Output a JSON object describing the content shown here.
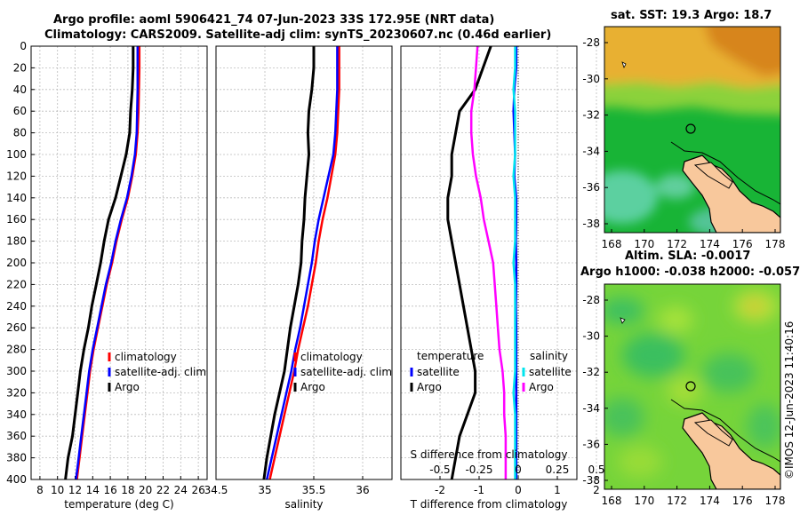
{
  "title": {
    "line1": "Argo profile: aoml 5906421_74 07-Jun-2023 33S 172.95E (NRT data)",
    "line2": "Climatology: CARS2009. Satellite-adj clim: synTS_20230607.nc (0.46d earlier)"
  },
  "sst_map": {
    "title": "sat. SST: 19.3 Argo: 18.7",
    "xticks": [
      "168",
      "170",
      "172",
      "174",
      "176",
      "178"
    ],
    "yticks": [
      "-28",
      "-30",
      "-32",
      "-34",
      "-36",
      "-38"
    ]
  },
  "sla_map": {
    "title1": "Altim. SLA: -0.0017",
    "title2": "Argo h1000: -0.038 h2000: -0.057",
    "xticks": [
      "168",
      "170",
      "172",
      "174",
      "176",
      "178"
    ],
    "yticks": [
      "-28",
      "-30",
      "-32",
      "-34",
      "-36",
      "-38"
    ]
  },
  "copyright": "©IMOS 12-Jun-2023 11:40:16",
  "colors": {
    "climatology": "#ff0000",
    "satellite": "#0000ff",
    "argo": "#000000",
    "sat_salt": "#00e5ee",
    "argo_salt": "#ff00ff"
  },
  "chart_data": [
    {
      "type": "line",
      "name": "temperature",
      "xlabel": "temperature (deg C)",
      "ylabel": "",
      "xlim": [
        7,
        27
      ],
      "ylim": [
        0,
        400
      ],
      "xticks": [
        "8",
        "10",
        "12",
        "14",
        "16",
        "18",
        "20",
        "22",
        "24",
        "26"
      ],
      "yticks": [
        "0",
        "20",
        "40",
        "60",
        "80",
        "100",
        "120",
        "140",
        "160",
        "180",
        "200",
        "220",
        "240",
        "260",
        "280",
        "300",
        "320",
        "340",
        "360",
        "380",
        "400"
      ],
      "legend": [
        "climatology",
        "satellite-adj. clim",
        "Argo"
      ],
      "series": [
        {
          "name": "climatology",
          "depth": [
            0,
            20,
            40,
            60,
            80,
            100,
            120,
            140,
            160,
            180,
            200,
            220,
            240,
            260,
            280,
            300,
            320,
            340,
            360,
            380,
            400
          ],
          "values": [
            19.3,
            19.3,
            19.25,
            19.2,
            19.1,
            18.9,
            18.5,
            18.0,
            17.3,
            16.7,
            16.2,
            15.6,
            15.1,
            14.6,
            14.1,
            13.7,
            13.4,
            13.1,
            12.8,
            12.5,
            12.2
          ]
        },
        {
          "name": "satellite-adj. clim",
          "depth": [
            0,
            20,
            40,
            60,
            80,
            100,
            120,
            140,
            160,
            180,
            200,
            220,
            240,
            260,
            280,
            300,
            320,
            340,
            360,
            380,
            400
          ],
          "values": [
            19.1,
            19.1,
            19.1,
            19.05,
            19.0,
            18.8,
            18.4,
            17.9,
            17.2,
            16.6,
            16.1,
            15.5,
            15.0,
            14.5,
            14.0,
            13.6,
            13.3,
            13.0,
            12.7,
            12.4,
            12.1
          ]
        },
        {
          "name": "Argo",
          "depth": [
            0,
            20,
            40,
            60,
            80,
            100,
            120,
            140,
            160,
            180,
            200,
            220,
            240,
            260,
            280,
            300,
            320,
            340,
            360,
            380,
            400
          ],
          "values": [
            18.6,
            18.6,
            18.5,
            18.3,
            18.2,
            17.8,
            17.2,
            16.6,
            15.8,
            15.3,
            14.9,
            14.4,
            13.9,
            13.5,
            13.0,
            12.6,
            12.3,
            12.0,
            11.7,
            11.2,
            10.9
          ]
        }
      ]
    },
    {
      "type": "line",
      "name": "salinity",
      "xlabel": "salinity",
      "ylabel": "",
      "xlim": [
        34.5,
        36.3
      ],
      "ylim": [
        0,
        400
      ],
      "xticks": [
        "34.5",
        "35",
        "35.5",
        "36"
      ],
      "legend": [
        "climatology",
        "satellite-adj. clim",
        "Argo"
      ],
      "series": [
        {
          "name": "climatology",
          "depth": [
            0,
            20,
            40,
            60,
            80,
            100,
            120,
            140,
            160,
            180,
            200,
            220,
            240,
            260,
            280,
            300,
            320,
            340,
            360,
            380,
            400
          ],
          "values": [
            35.76,
            35.76,
            35.76,
            35.75,
            35.74,
            35.72,
            35.68,
            35.64,
            35.59,
            35.55,
            35.52,
            35.48,
            35.44,
            35.39,
            35.34,
            35.3,
            35.25,
            35.2,
            35.15,
            35.1,
            35.05
          ]
        },
        {
          "name": "satellite-adj. clim",
          "depth": [
            0,
            20,
            40,
            60,
            80,
            100,
            120,
            140,
            160,
            180,
            200,
            220,
            240,
            260,
            280,
            300,
            320,
            340,
            360,
            380,
            400
          ],
          "values": [
            35.74,
            35.74,
            35.74,
            35.73,
            35.72,
            35.7,
            35.65,
            35.6,
            35.55,
            35.51,
            35.48,
            35.44,
            35.4,
            35.36,
            35.31,
            35.27,
            35.22,
            35.17,
            35.12,
            35.07,
            35.02
          ]
        },
        {
          "name": "Argo",
          "depth": [
            0,
            20,
            40,
            60,
            80,
            100,
            120,
            140,
            160,
            180,
            200,
            220,
            240,
            260,
            280,
            300,
            320,
            340,
            360,
            380,
            400
          ],
          "values": [
            35.5,
            35.5,
            35.48,
            35.45,
            35.44,
            35.45,
            35.43,
            35.41,
            35.4,
            35.38,
            35.37,
            35.34,
            35.3,
            35.26,
            35.23,
            35.2,
            35.15,
            35.1,
            35.06,
            35.02,
            34.99
          ]
        }
      ]
    },
    {
      "type": "line",
      "name": "difference",
      "xlabel": "T difference from climatology",
      "xlabel_top": "S difference from climatology",
      "xlim": [
        -3,
        1.5
      ],
      "ylim": [
        0,
        400
      ],
      "xticks": [
        "-2",
        "-1",
        "0",
        "1",
        "2"
      ],
      "xticks_s": [
        "-0.5",
        "-0.25",
        "0",
        "0.25",
        "0.5"
      ],
      "legend_temp": {
        "title": "temperature",
        "items": [
          "satellite",
          "Argo"
        ]
      },
      "legend_salt": {
        "title": "salinity",
        "items": [
          "satellite",
          "Argo"
        ]
      },
      "series": [
        {
          "name": "temperature satellite",
          "depth": [
            0,
            20,
            40,
            60,
            80,
            100,
            120,
            140,
            160,
            180,
            200,
            220,
            240,
            260,
            280,
            300,
            320,
            340,
            360,
            380,
            400
          ],
          "values": [
            -0.05,
            -0.05,
            -0.1,
            -0.12,
            -0.1,
            -0.08,
            -0.1,
            -0.05,
            -0.05,
            -0.06,
            -0.05,
            -0.05,
            -0.06,
            -0.05,
            -0.05,
            -0.05,
            -0.05,
            -0.05,
            -0.05,
            -0.05,
            -0.05
          ]
        },
        {
          "name": "temperature Argo",
          "depth": [
            0,
            20,
            40,
            60,
            80,
            100,
            120,
            140,
            160,
            180,
            200,
            220,
            240,
            260,
            280,
            300,
            320,
            340,
            360,
            380,
            400
          ],
          "values": [
            -0.7,
            -0.9,
            -1.1,
            -1.5,
            -1.6,
            -1.7,
            -1.7,
            -1.8,
            -1.8,
            -1.7,
            -1.6,
            -1.5,
            -1.4,
            -1.3,
            -1.2,
            -1.1,
            -1.1,
            -1.3,
            -1.5,
            -1.6,
            -1.7
          ]
        },
        {
          "name": "salinity satellite",
          "depth": [
            0,
            20,
            40,
            60,
            80,
            100,
            120,
            140,
            160,
            180,
            200,
            220,
            240,
            260,
            280,
            300,
            320,
            340,
            360,
            380,
            400
          ],
          "values": [
            -0.02,
            -0.02,
            -0.03,
            -0.02,
            -0.02,
            -0.02,
            -0.03,
            -0.02,
            -0.02,
            -0.02,
            -0.03,
            -0.02,
            -0.02,
            -0.02,
            -0.02,
            -0.02,
            -0.03,
            -0.02,
            -0.02,
            -0.02,
            -0.02
          ]
        },
        {
          "name": "salinity Argo",
          "depth": [
            0,
            20,
            40,
            60,
            80,
            100,
            120,
            140,
            160,
            180,
            200,
            220,
            240,
            260,
            280,
            300,
            320,
            340,
            360,
            380,
            400
          ],
          "values": [
            -0.26,
            -0.27,
            -0.28,
            -0.3,
            -0.3,
            -0.29,
            -0.27,
            -0.24,
            -0.22,
            -0.19,
            -0.16,
            -0.15,
            -0.14,
            -0.13,
            -0.12,
            -0.1,
            -0.09,
            -0.09,
            -0.08,
            -0.08,
            -0.08
          ]
        }
      ]
    }
  ]
}
